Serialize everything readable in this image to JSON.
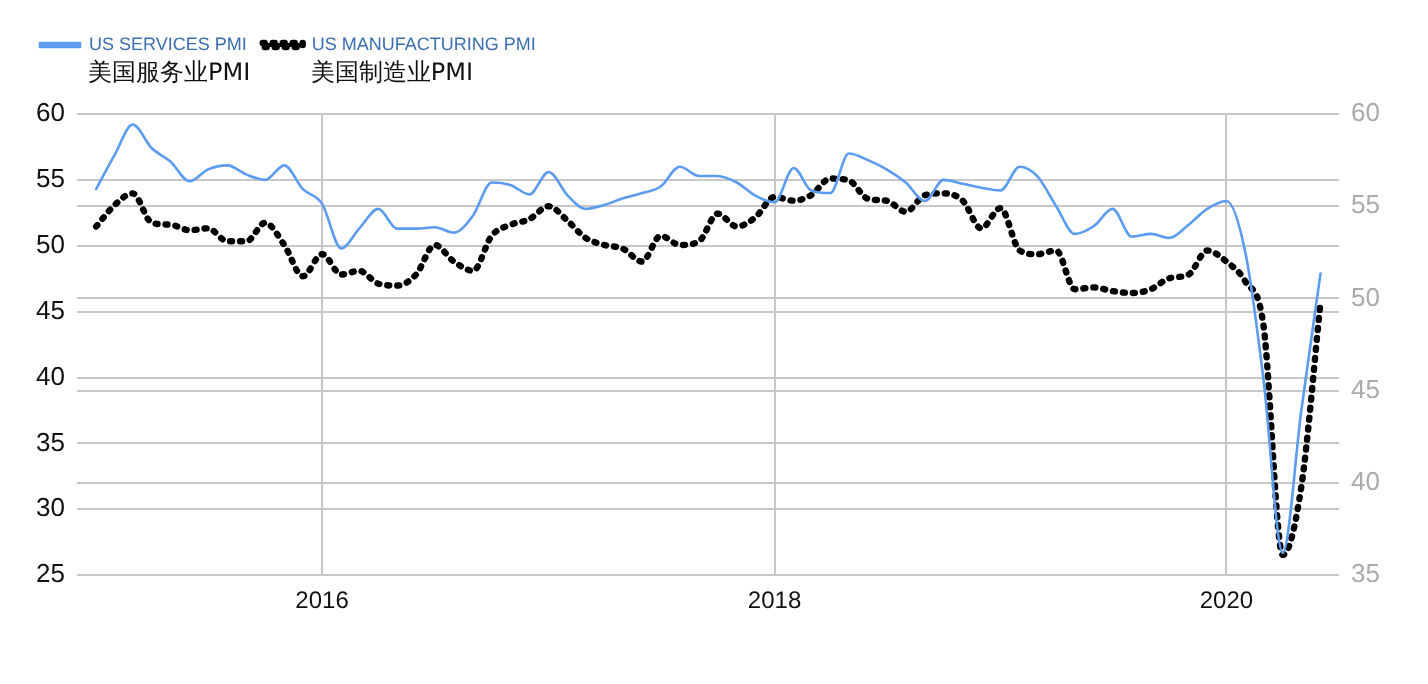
{
  "chart_data": {
    "type": "line",
    "x": [
      "2015-01",
      "2015-02",
      "2015-03",
      "2015-04",
      "2015-05",
      "2015-06",
      "2015-07",
      "2015-08",
      "2015-09",
      "2015-10",
      "2015-11",
      "2015-12",
      "2016-01",
      "2016-02",
      "2016-03",
      "2016-04",
      "2016-05",
      "2016-06",
      "2016-07",
      "2016-08",
      "2016-09",
      "2016-10",
      "2016-11",
      "2016-12",
      "2017-01",
      "2017-02",
      "2017-03",
      "2017-04",
      "2017-05",
      "2017-06",
      "2017-07",
      "2017-08",
      "2017-09",
      "2017-10",
      "2017-11",
      "2017-12",
      "2018-01",
      "2018-02",
      "2018-03",
      "2018-04",
      "2018-05",
      "2018-06",
      "2018-07",
      "2018-08",
      "2018-09",
      "2018-10",
      "2018-11",
      "2018-12",
      "2019-01",
      "2019-02",
      "2019-03",
      "2019-04",
      "2019-05",
      "2019-06",
      "2019-07",
      "2019-08",
      "2019-09",
      "2019-10",
      "2019-11",
      "2019-12",
      "2020-01",
      "2020-02",
      "2020-03",
      "2020-04",
      "2020-05",
      "2020-06"
    ],
    "series": [
      {
        "name": "US SERVICES PMI",
        "color": "#5b9bf0",
        "line_style": "solid",
        "values": [
          54.3,
          57.0,
          59.2,
          57.4,
          56.4,
          54.9,
          55.8,
          56.1,
          55.4,
          55.0,
          56.1,
          54.3,
          53.2,
          49.8,
          51.3,
          52.8,
          51.3,
          51.3,
          51.4,
          51.0,
          52.3,
          54.8,
          54.6,
          53.9,
          55.6,
          53.8,
          52.8,
          53.1,
          53.6,
          54.0,
          54.5,
          56.0,
          55.3,
          55.3,
          54.8,
          53.8,
          53.3,
          55.9,
          54.2,
          54.0,
          57.0,
          56.5,
          55.8,
          54.8,
          53.4,
          55.0,
          54.7,
          54.4,
          54.2,
          56.0,
          55.3,
          53.0,
          50.9,
          51.5,
          52.8,
          50.7,
          50.9,
          50.6,
          51.6,
          52.8,
          53.4,
          49.4,
          39.8,
          26.7,
          37.5,
          47.9
        ]
      },
      {
        "name": "US MANUFACTURING PMI",
        "color": "#000000",
        "line_style": "dotted",
        "axis": "y2",
        "values": [
          53.9,
          55.1,
          55.7,
          54.1,
          54.0,
          53.7,
          53.8,
          53.1,
          53.1,
          54.1,
          52.9,
          51.2,
          52.4,
          51.3,
          51.5,
          50.8,
          50.7,
          51.3,
          52.9,
          52.0,
          51.5,
          53.4,
          54.0,
          54.3,
          55.0,
          54.2,
          53.3,
          52.9,
          52.7,
          52.0,
          53.4,
          52.9,
          53.1,
          54.6,
          53.9,
          54.4,
          55.5,
          55.3,
          55.6,
          56.5,
          56.4,
          55.4,
          55.3,
          54.7,
          55.6,
          55.7,
          55.3,
          53.8,
          54.9,
          52.6,
          52.4,
          52.6,
          50.5,
          50.6,
          50.4,
          50.3,
          50.5,
          51.1,
          51.3,
          52.6,
          52.0,
          50.9,
          48.5,
          36.1,
          39.8,
          49.8
        ]
      }
    ],
    "xlim": [
      "2014-12",
      "2020-07"
    ],
    "xticks": [
      "2016",
      "2018",
      "2020"
    ],
    "ylim": [
      25,
      60
    ],
    "yticks": [
      25,
      30,
      35,
      40,
      45,
      50,
      55,
      60
    ],
    "y2lim": [
      35,
      60
    ],
    "y2ticks": [
      35,
      40,
      45,
      50,
      55,
      60
    ],
    "grid": true,
    "legend": "top left",
    "marker": "none",
    "annotations": [
      "美国服务业PMI",
      "美国制造业PMI"
    ]
  }
}
